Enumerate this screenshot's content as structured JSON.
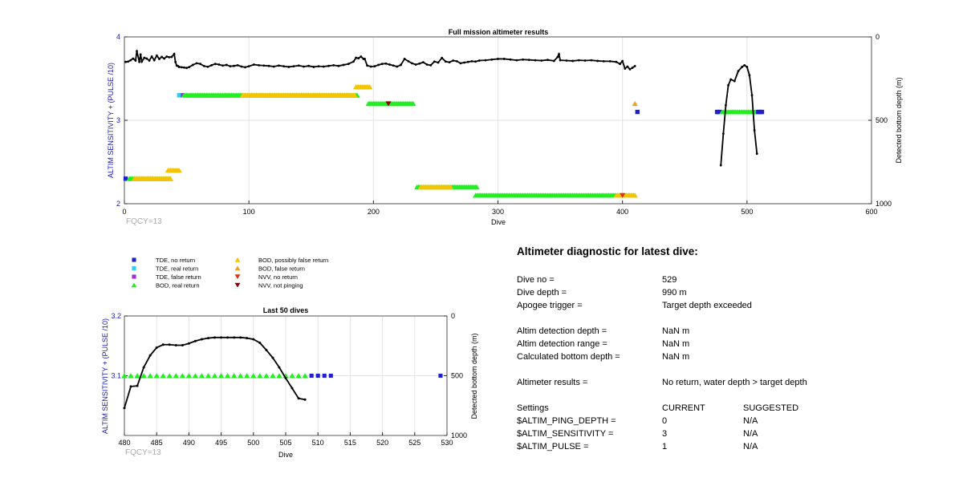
{
  "chart_data": [
    {
      "type": "scatter",
      "title": "Full mission altimeter results",
      "xlabel": "Dive",
      "ylabel": "ALTIM SENSITIVITY + (PULSE /10)",
      "y2label": "Detected bottom depth (m)",
      "xlim": [
        0,
        600
      ],
      "ylim": [
        2,
        4
      ],
      "y2lim": [
        0,
        1000
      ],
      "y2_reversed": true,
      "xticks": [
        "0",
        "100",
        "200",
        "300",
        "400",
        "500",
        "600"
      ],
      "yticks": [
        "2",
        "3",
        "4"
      ],
      "y2ticks": [
        "0",
        "500",
        "1000"
      ],
      "grid": true,
      "annotation": "FQCY=13",
      "marker_segments": [
        {
          "kind": "tde_no_return",
          "x": [
            1,
            1
          ],
          "y": 2.3
        },
        {
          "kind": "bod_real",
          "x": [
            4,
            37
          ],
          "y": 2.3
        },
        {
          "kind": "bod_possibly_false",
          "x": [
            8,
            37
          ],
          "y": 2.3
        },
        {
          "kind": "bod_possibly_false",
          "x": [
            35,
            44
          ],
          "y": 2.4
        },
        {
          "kind": "tde_real",
          "x": [
            44,
            46
          ],
          "y": 3.3
        },
        {
          "kind": "tde_false",
          "x": [
            47,
            47
          ],
          "y": 3.3
        },
        {
          "kind": "bod_real",
          "x": [
            48,
            187
          ],
          "y": 3.3
        },
        {
          "kind": "bod_possibly_false",
          "x": [
            95,
            185
          ],
          "y": 3.3
        },
        {
          "kind": "bod_possibly_false",
          "x": [
            186,
            197
          ],
          "y": 3.4
        },
        {
          "kind": "bod_real",
          "x": [
            196,
            232
          ],
          "y": 3.2
        },
        {
          "kind": "nvv_not_pinging",
          "x": [
            212,
            212
          ],
          "y": 3.2
        },
        {
          "kind": "bod_real",
          "x": [
            235,
            283
          ],
          "y": 2.2
        },
        {
          "kind": "bod_possibly_false",
          "x": [
            238,
            262
          ],
          "y": 2.2
        },
        {
          "kind": "bod_real",
          "x": [
            282,
            410
          ],
          "y": 2.1
        },
        {
          "kind": "bod_possibly_false",
          "x": [
            395,
            410
          ],
          "y": 2.1
        },
        {
          "kind": "nvv_no_return",
          "x": [
            400,
            400
          ],
          "y": 2.1
        },
        {
          "kind": "bod_false",
          "x": [
            410,
            410
          ],
          "y": 3.2
        },
        {
          "kind": "tde_no_return",
          "x": [
            412,
            412
          ],
          "y": 3.1
        },
        {
          "kind": "tde_no_return",
          "x": [
            476,
            478
          ],
          "y": 3.1
        },
        {
          "kind": "bod_real",
          "x": [
            480,
            508
          ],
          "y": 3.1
        },
        {
          "kind": "tde_no_return",
          "x": [
            509,
            512
          ],
          "y": 3.1
        }
      ],
      "depth_series": {
        "name": "Detected bottom depth",
        "x": [
          1,
          3,
          5,
          7,
          9,
          10,
          12,
          13,
          14,
          16,
          18,
          20,
          22,
          24,
          26,
          28,
          30,
          32,
          34,
          36,
          38,
          40,
          41,
          42,
          43,
          44,
          46,
          48,
          50,
          52,
          55,
          58,
          61,
          64,
          67,
          70,
          73,
          76,
          79,
          82,
          85,
          88,
          91,
          94,
          97,
          100,
          104,
          108,
          112,
          116,
          120,
          124,
          128,
          132,
          136,
          140,
          144,
          148,
          152,
          156,
          160,
          164,
          168,
          172,
          176,
          180,
          184,
          186,
          188,
          190,
          192,
          193,
          195,
          198,
          201,
          204,
          207,
          210,
          213,
          216,
          219,
          222,
          225,
          228,
          231,
          234,
          237,
          240,
          243,
          246,
          249,
          252,
          255,
          258,
          261,
          264,
          267,
          270,
          273,
          276,
          279,
          282,
          285,
          290,
          295,
          300,
          305,
          310,
          315,
          320,
          325,
          330,
          335,
          340,
          345,
          348,
          349,
          350,
          355,
          360,
          365,
          370,
          375,
          380,
          385,
          390,
          395,
          398,
          400,
          402,
          404,
          406,
          408,
          410
        ],
        "y": [
          150,
          148,
          140,
          130,
          142,
          85,
          150,
          105,
          148,
          125,
          130,
          142,
          118,
          140,
          112,
          132,
          120,
          130,
          118,
          122,
          120,
          102,
          150,
          172,
          175,
          180,
          182,
          184,
          186,
          181,
          168,
          158,
          162,
          175,
          179,
          170,
          162,
          166,
          172,
          168,
          176,
          174,
          170,
          178,
          182,
          176,
          166,
          170,
          172,
          174,
          178,
          172,
          176,
          180,
          176,
          172,
          178,
          174,
          180,
          176,
          178,
          174,
          170,
          174,
          168,
          162,
          148,
          125,
          128,
          118,
          132,
          132,
          172,
          178,
          176,
          168,
          162,
          160,
          166,
          172,
          178,
          168,
          132,
          146,
          158,
          166,
          160,
          152,
          166,
          170,
          148,
          154,
          126,
          148,
          152,
          142,
          146,
          158,
          154,
          150,
          146,
          148,
          142,
          140,
          136,
          132,
          132,
          136,
          140,
          136,
          138,
          140,
          142,
          138,
          144,
          120,
          104,
          140,
          142,
          144,
          140,
          142,
          140,
          144,
          146,
          146,
          150,
          162,
          145,
          190,
          178,
          194,
          185,
          175
        ]
      },
      "depth_arc": {
        "name": "Detected bottom depth",
        "x": [
          479,
          481,
          483,
          485,
          487,
          490,
          493,
          496,
          498,
          500,
          502,
          504,
          506,
          508
        ],
        "y": [
          770,
          580,
          410,
          290,
          255,
          265,
          205,
          180,
          170,
          180,
          230,
          350,
          560,
          700
        ]
      }
    },
    {
      "type": "scatter",
      "title": "Last 50 dives",
      "xlabel": "Dive",
      "ylabel": "ALTIM SENSITIVITY + (PULSE /10)",
      "y2label": "Detected bottom depth (m)",
      "xlim": [
        480,
        530
      ],
      "ylim": [
        3.0,
        3.2
      ],
      "y2lim": [
        0,
        1000
      ],
      "y2_reversed": true,
      "xticks": [
        "480",
        "485",
        "490",
        "495",
        "500",
        "505",
        "510",
        "515",
        "520",
        "525",
        "530"
      ],
      "yticks": [
        "3.1",
        "3.2"
      ],
      "y2ticks": [
        "0",
        "500",
        "1000"
      ],
      "grid": true,
      "annotation": "FQCY=13",
      "bod_real_dives": [
        480,
        481,
        482,
        483,
        484,
        485,
        486,
        487,
        488,
        489,
        490,
        491,
        492,
        493,
        494,
        495,
        496,
        497,
        498,
        499,
        500,
        501,
        502,
        503,
        504,
        505,
        506,
        507,
        508
      ],
      "tde_no_return_dives": [
        509,
        510,
        511,
        512,
        529
      ],
      "marker_level": 3.1,
      "depth_series": {
        "name": "Detected bottom depth",
        "x": [
          480,
          481,
          482,
          483,
          484,
          485,
          486,
          487,
          488,
          489,
          490,
          491,
          492,
          493,
          494,
          495,
          496,
          497,
          498,
          499,
          500,
          501,
          502,
          503,
          504,
          505,
          506,
          507,
          508
        ],
        "y": [
          770,
          590,
          585,
          430,
          330,
          265,
          240,
          240,
          245,
          245,
          230,
          210,
          195,
          185,
          180,
          180,
          180,
          180,
          180,
          185,
          195,
          225,
          285,
          350,
          430,
          520,
          605,
          690,
          700
        ]
      }
    }
  ],
  "legend": {
    "items": [
      {
        "label": "TDE, no return",
        "marker": "square",
        "color": "#1f1fcc"
      },
      {
        "label": "TDE, real return",
        "marker": "square",
        "color": "#33ccee"
      },
      {
        "label": "TDE, false return",
        "marker": "square",
        "color": "#9933cc"
      },
      {
        "label": "BOD, real return",
        "marker": "triangle-up",
        "color": "#22ee22"
      },
      {
        "label": "BOD, possibly false return",
        "marker": "triangle-up",
        "color": "#f5c400"
      },
      {
        "label": "BOD, false return",
        "marker": "triangle-up",
        "color": "#f0a020"
      },
      {
        "label": "NVV, no return",
        "marker": "triangle-down",
        "color": "#dd3311"
      },
      {
        "label": "NVV, not pinging",
        "marker": "triangle-down",
        "color": "#8b0000"
      }
    ]
  },
  "diagnostic": {
    "title": "Altimeter diagnostic for latest dive:",
    "dive_no_label": "Dive no =",
    "dive_no": "529",
    "dive_depth_label": "Dive depth =",
    "dive_depth": "990 m",
    "apogee_label": "Apogee trigger =",
    "apogee": "Target depth exceeded",
    "detection_depth_label": "Altim detection depth =",
    "detection_depth": "NaN m",
    "detection_range_label": "Altim detection range =",
    "detection_range": "NaN m",
    "bottom_depth_label": "Calculated bottom depth =",
    "bottom_depth": "NaN m",
    "results_label": "Altimeter results =",
    "results": "No return, water depth > target depth",
    "settings_label": "Settings",
    "current_label": "CURRENT",
    "suggested_label": "SUGGESTED",
    "settings": [
      {
        "name": "$ALTIM_PING_DEPTH =",
        "current": "0",
        "suggested": "N/A"
      },
      {
        "name": "$ALTIM_SENSITIVITY =",
        "current": "3",
        "suggested": "N/A"
      },
      {
        "name": "$ALTIM_PULSE =",
        "current": "1",
        "suggested": "N/A"
      }
    ]
  },
  "colors": {
    "axis_left": "#1a1aaa",
    "grid": "#e3e3e3",
    "annotation": "#aaaaaa",
    "depth_line": "#000000"
  }
}
